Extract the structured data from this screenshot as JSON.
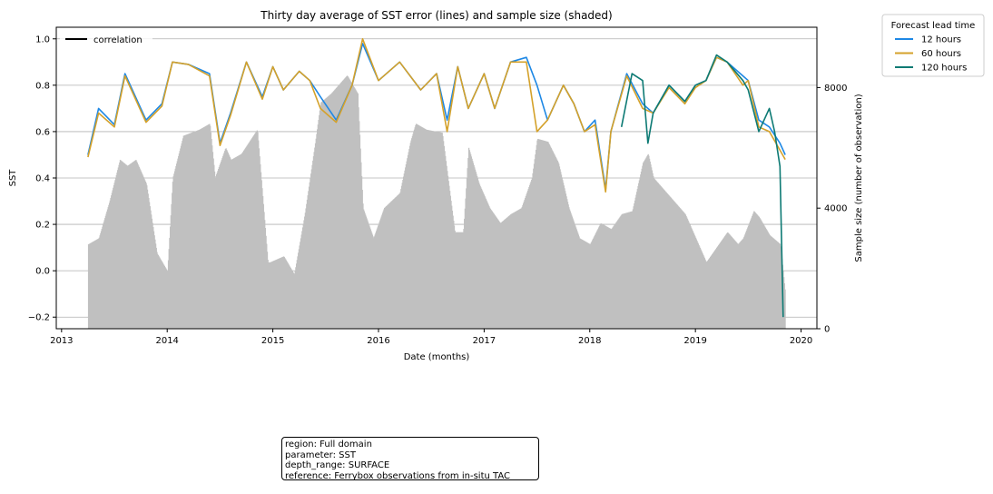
{
  "chart_data": {
    "type": "line",
    "title": "Thirty day average of SST error (lines) and sample size (shaded)",
    "xlabel": "Date (months)",
    "ylabel": "SST",
    "y2label": "Sample size (number of observation)",
    "xlim": [
      2012.95,
      2020.15
    ],
    "ylim": [
      -0.25,
      1.05
    ],
    "y2lim": [
      0,
      10000
    ],
    "x_ticks": [
      "2013",
      "2014",
      "2015",
      "2016",
      "2017",
      "2018",
      "2019",
      "2020"
    ],
    "y_ticks": [
      "−0.2",
      "0.0",
      "0.2",
      "0.4",
      "0.6",
      "0.8",
      "1.0"
    ],
    "y2_ticks": [
      "0",
      "4000",
      "8000"
    ],
    "grid": "horizontal",
    "series": [
      {
        "name": "12 hours",
        "color": "#1e88e5",
        "x": [
          2013.25,
          2013.35,
          2013.5,
          2013.6,
          2013.8,
          2013.95,
          2014.05,
          2014.2,
          2014.4,
          2014.5,
          2014.6,
          2014.75,
          2014.9,
          2015.0,
          2015.1,
          2015.25,
          2015.35,
          2015.45,
          2015.6,
          2015.75,
          2015.85,
          2016.0,
          2016.2,
          2016.4,
          2016.55,
          2016.65,
          2016.75,
          2016.85,
          2017.0,
          2017.1,
          2017.25,
          2017.4,
          2017.5,
          2017.6,
          2017.75,
          2017.85,
          2017.95,
          2018.05,
          2018.15,
          2018.2,
          2018.35,
          2018.5,
          2018.6,
          2018.75,
          2018.9,
          2019.0,
          2019.1,
          2019.2,
          2019.3,
          2019.45,
          2019.5,
          2019.6,
          2019.7,
          2019.8,
          2019.85
        ],
        "y": [
          0.5,
          0.7,
          0.63,
          0.85,
          0.65,
          0.72,
          0.9,
          0.89,
          0.85,
          0.55,
          0.68,
          0.9,
          0.75,
          0.88,
          0.78,
          0.86,
          0.82,
          0.75,
          0.65,
          0.8,
          0.98,
          0.82,
          0.9,
          0.78,
          0.85,
          0.65,
          0.88,
          0.7,
          0.85,
          0.7,
          0.9,
          0.92,
          0.8,
          0.65,
          0.8,
          0.72,
          0.6,
          0.65,
          0.35,
          0.6,
          0.85,
          0.72,
          0.68,
          0.8,
          0.73,
          0.8,
          0.82,
          0.92,
          0.9,
          0.84,
          0.82,
          0.65,
          0.62,
          0.55,
          0.5
        ]
      },
      {
        "name": "60 hours",
        "color": "#d4a12a",
        "x": [
          2013.25,
          2013.35,
          2013.5,
          2013.6,
          2013.8,
          2013.95,
          2014.05,
          2014.2,
          2014.4,
          2014.5,
          2014.6,
          2014.75,
          2014.9,
          2015.0,
          2015.1,
          2015.25,
          2015.35,
          2015.45,
          2015.6,
          2015.75,
          2015.85,
          2016.0,
          2016.2,
          2016.4,
          2016.55,
          2016.65,
          2016.75,
          2016.85,
          2017.0,
          2017.1,
          2017.25,
          2017.4,
          2017.5,
          2017.6,
          2017.75,
          2017.85,
          2017.95,
          2018.05,
          2018.15,
          2018.2,
          2018.35,
          2018.5,
          2018.6,
          2018.75,
          2018.9,
          2019.0,
          2019.1,
          2019.2,
          2019.3,
          2019.45,
          2019.5,
          2019.6,
          2019.7,
          2019.8,
          2019.85
        ],
        "y": [
          0.49,
          0.68,
          0.62,
          0.84,
          0.64,
          0.71,
          0.9,
          0.89,
          0.84,
          0.54,
          0.67,
          0.9,
          0.74,
          0.88,
          0.78,
          0.86,
          0.82,
          0.7,
          0.64,
          0.8,
          1.0,
          0.82,
          0.9,
          0.78,
          0.85,
          0.6,
          0.88,
          0.7,
          0.85,
          0.7,
          0.9,
          0.9,
          0.6,
          0.65,
          0.8,
          0.72,
          0.6,
          0.63,
          0.34,
          0.6,
          0.84,
          0.7,
          0.68,
          0.79,
          0.72,
          0.79,
          0.82,
          0.92,
          0.9,
          0.8,
          0.82,
          0.62,
          0.6,
          0.52,
          0.48
        ]
      },
      {
        "name": "120 hours",
        "color": "#0d7a74",
        "x": [
          2018.3,
          2018.4,
          2018.5,
          2018.55,
          2018.6,
          2018.75,
          2018.9,
          2019.0,
          2019.1,
          2019.2,
          2019.3,
          2019.45,
          2019.5,
          2019.6,
          2019.7,
          2019.75,
          2019.8,
          2019.83
        ],
        "y": [
          0.62,
          0.85,
          0.82,
          0.55,
          0.68,
          0.8,
          0.73,
          0.8,
          0.82,
          0.93,
          0.9,
          0.82,
          0.78,
          0.6,
          0.7,
          0.6,
          0.45,
          -0.2
        ]
      }
    ],
    "sample_size": {
      "name": "sample size",
      "x": [
        2013.25,
        2013.35,
        2013.45,
        2013.55,
        2013.62,
        2013.7,
        2013.8,
        2013.9,
        2014.0,
        2014.05,
        2014.15,
        2014.3,
        2014.4,
        2014.45,
        2014.55,
        2014.6,
        2014.7,
        2014.85,
        2014.95,
        2014.97,
        2015.1,
        2015.2,
        2015.3,
        2015.4,
        2015.45,
        2015.55,
        2015.7,
        2015.8,
        2015.85,
        2015.95,
        2016.05,
        2016.2,
        2016.3,
        2016.35,
        2016.45,
        2016.6,
        2016.72,
        2016.8,
        2016.85,
        2016.95,
        2017.05,
        2017.15,
        2017.25,
        2017.35,
        2017.45,
        2017.5,
        2017.6,
        2017.7,
        2017.8,
        2017.9,
        2018.0,
        2018.1,
        2018.2,
        2018.3,
        2018.4,
        2018.5,
        2018.55,
        2018.6,
        2018.7,
        2018.8,
        2018.9,
        2019.0,
        2019.1,
        2019.2,
        2019.3,
        2019.4,
        2019.45,
        2019.55,
        2019.6,
        2019.7,
        2019.8,
        2019.85
      ],
      "y": [
        2800,
        3000,
        4200,
        5600,
        5400,
        5600,
        4800,
        2500,
        1900,
        5000,
        6400,
        6600,
        6800,
        5000,
        6000,
        5600,
        5800,
        6600,
        2200,
        2200,
        2400,
        1800,
        3800,
        6200,
        7500,
        7800,
        8400,
        7800,
        4000,
        3000,
        4000,
        4500,
        6200,
        6800,
        6600,
        6500,
        3200,
        3200,
        6000,
        4800,
        4000,
        3500,
        3800,
        4000,
        5000,
        6300,
        6200,
        5500,
        4000,
        3000,
        2800,
        3500,
        3300,
        3800,
        3900,
        5500,
        5800,
        5000,
        4600,
        4200,
        3800,
        3000,
        2200,
        2700,
        3200,
        2800,
        3000,
        3900,
        3700,
        3100,
        2800,
        1100
      ]
    }
  },
  "legend": {
    "left_label": "correlation",
    "right_title": "Forecast lead time"
  },
  "info_box": {
    "region": "region: Full domain",
    "parameter": "parameter: SST",
    "depth_range": "depth_range: SURFACE",
    "reference": "reference: Ferrybox observations from in-situ TAC"
  }
}
